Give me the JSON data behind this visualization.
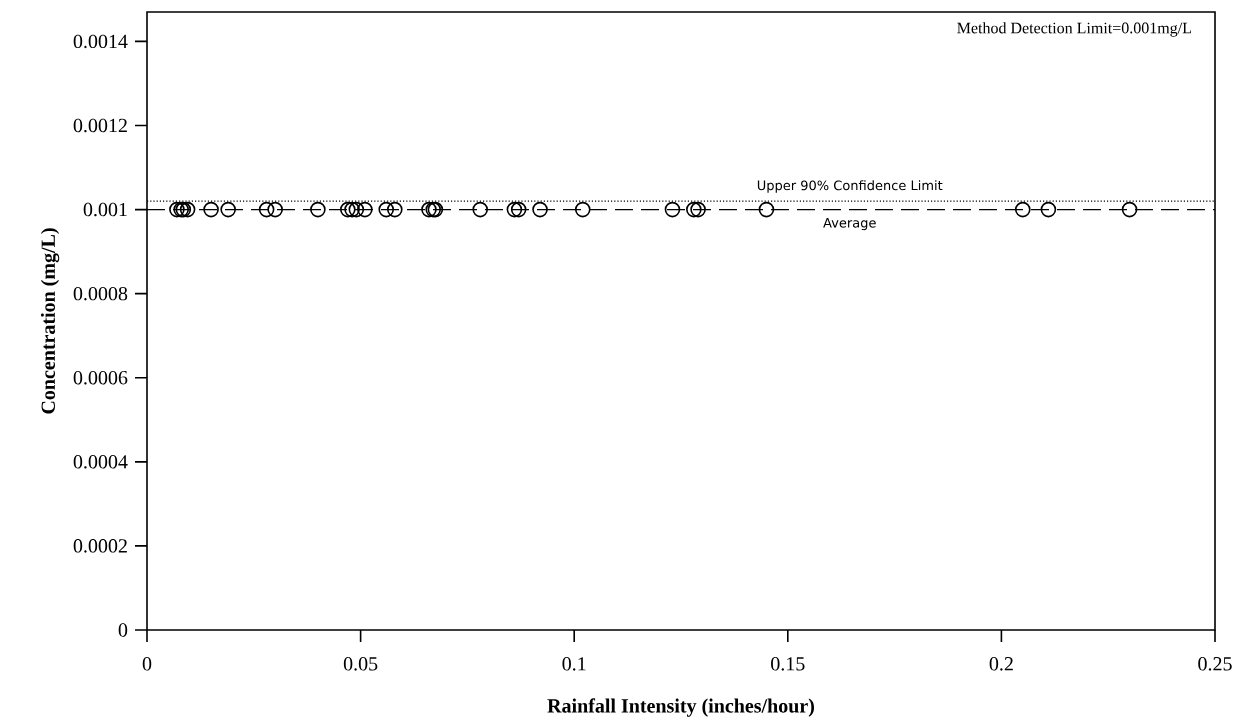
{
  "chart_data": {
    "type": "scatter",
    "xlabel": "Rainfall Intensity (inches/hour)",
    "ylabel": "Concentration (mg/L)",
    "annotations": [
      "Method Detection Limit=0.001mg/L"
    ],
    "x": [
      0.007,
      0.008,
      0.0085,
      0.0095,
      0.015,
      0.019,
      0.028,
      0.03,
      0.04,
      0.047,
      0.048,
      0.049,
      0.051,
      0.056,
      0.058,
      0.066,
      0.067,
      0.0675,
      0.078,
      0.086,
      0.087,
      0.092,
      0.102,
      0.123,
      0.128,
      0.129,
      0.145,
      0.205,
      0.211,
      0.23
    ],
    "series": [
      {
        "color": "#000000",
        "values": [
          0.001,
          0.001,
          0.001,
          0.001,
          0.001,
          0.001,
          0.001,
          0.001,
          0.001,
          0.001,
          0.001,
          0.001,
          0.001,
          0.001,
          0.001,
          0.001,
          0.001,
          0.001,
          0.001,
          0.001,
          0.001,
          0.001,
          0.001,
          0.001,
          0.001,
          0.001,
          0.001,
          0.001,
          0.001,
          0.001
        ]
      }
    ],
    "marker": "circle",
    "grid": false,
    "xlim": [
      0,
      0.25
    ],
    "ylim": [
      0,
      0.00147
    ],
    "xticks": [
      0,
      0.05,
      0.1,
      0.15,
      0.2,
      0.25
    ],
    "yticks": [
      0,
      0.0002,
      0.0004,
      0.0006,
      0.0008,
      0.001,
      0.0012,
      0.0014
    ],
    "ref_lines": [
      {
        "axis": "y",
        "value": 0.00102,
        "label": "Upper 90% Confidence Limit",
        "line_style": "dotted",
        "color": "#000000"
      },
      {
        "axis": "y",
        "value": 0.001,
        "label": "Average",
        "line_style": "dashed",
        "color": "#000000"
      }
    ]
  }
}
